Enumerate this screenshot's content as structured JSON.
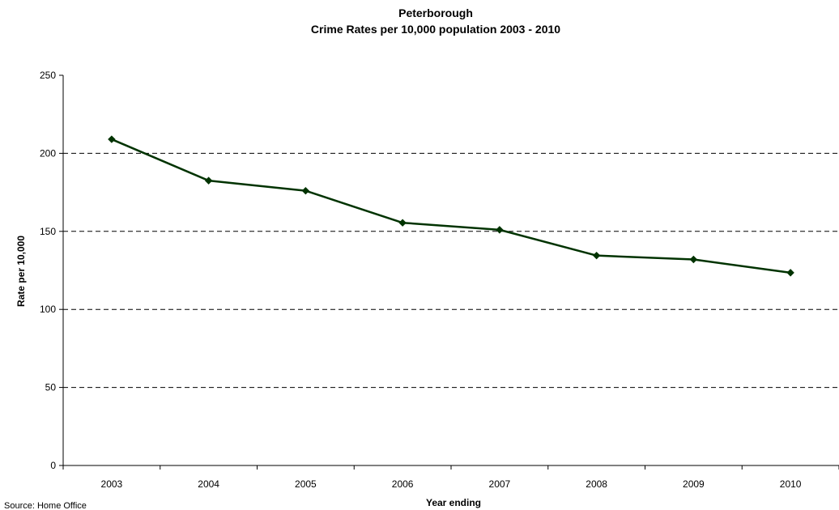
{
  "chart_data": {
    "type": "line",
    "title": "Peterborough",
    "subtitle": "Crime Rates per 10,000 population 2003 - 2010",
    "xlabel": "Year ending",
    "ylabel": "Rate per 10,000",
    "categories": [
      "2003",
      "2004",
      "2005",
      "2006",
      "2007",
      "2008",
      "2009",
      "2010"
    ],
    "series": [
      {
        "values": [
          209,
          182.5,
          176,
          155.5,
          151,
          134.5,
          132,
          123.5
        ]
      }
    ],
    "ylim": [
      0,
      250
    ],
    "yticks": [
      "0",
      "50",
      "100",
      "150",
      "200",
      "250"
    ],
    "grid": "horizontal-dashed",
    "legend": "none",
    "line_color": "#003300",
    "source": "Source: Home Office"
  }
}
